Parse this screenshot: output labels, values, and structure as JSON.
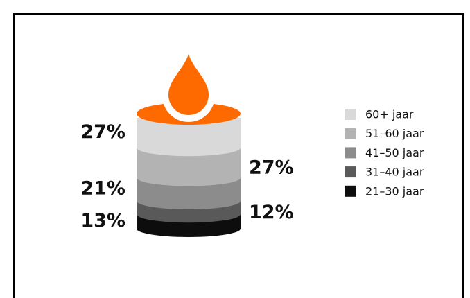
{
  "chart_data": {
    "type": "stacked-cylinder",
    "categories": [
      "60+ jaar",
      "51–60 jaar",
      "41–50 jaar",
      "31–40 jaar",
      "21–30 jaar"
    ],
    "values": [
      27,
      27,
      21,
      12,
      13
    ],
    "value_labels": [
      "27%",
      "27%",
      "21%",
      "12%",
      "13%"
    ],
    "colors": [
      "#d9d9d9",
      "#b3b3b3",
      "#8c8c8c",
      "#595959",
      "#0d0d0d"
    ],
    "accent_color": "#ff6a00",
    "legend": "right"
  }
}
